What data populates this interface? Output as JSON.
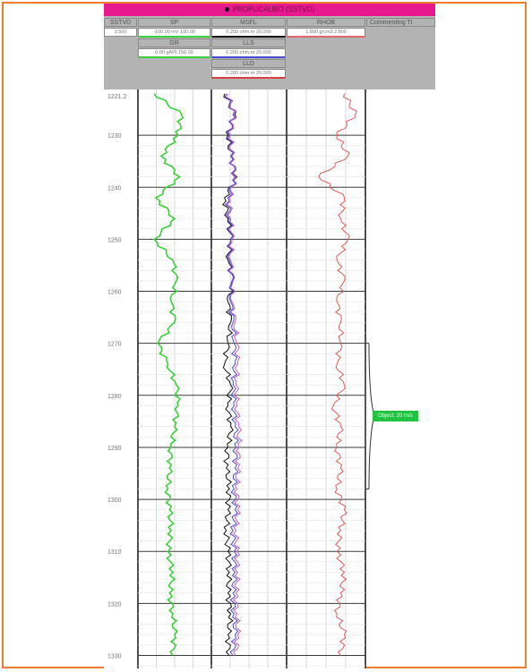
{
  "title": "PROPUCAUBO (SSTVD)",
  "header": {
    "depth_track": {
      "name": "SSTVD",
      "scale": "1:500"
    },
    "sp": {
      "name": "SP",
      "scale": "-100.00 mV 100.00"
    },
    "gr": {
      "name": "GR",
      "scale": "0.00 gAPI 150.00"
    },
    "msfl": {
      "name": "MSFL",
      "scale": "0.200 ohm.m 20.000"
    },
    "lls": {
      "name": "LLS",
      "scale": "0.200 ohm.m 20.000"
    },
    "lld": {
      "name": "LLD",
      "scale": "0.200 ohm.m 20.000"
    },
    "rhob": {
      "name": "RHOB",
      "scale": "1.800 g/cm3 2.800"
    },
    "comments": {
      "name": "Commenting Tr"
    }
  },
  "depth_ticks": [
    "1221.2",
    "1230",
    "1240",
    "1250",
    "1260",
    "1270",
    "1280",
    "1290",
    "1300",
    "1310",
    "1320",
    "1330"
  ],
  "callout": {
    "label": "Object: 20 m/s"
  },
  "chart_data": {
    "type": "line",
    "y_axis": {
      "label": "SSTVD",
      "range": [
        1221.2,
        1332.5
      ],
      "inverted": true
    },
    "bracket_depth_range": [
      1270,
      1298
    ],
    "series": [
      {
        "name": "SP",
        "units": "mV",
        "range": [
          -100,
          100
        ],
        "color": "#3ccf3c",
        "depth": [
          1222,
          1226,
          1230,
          1234,
          1238,
          1242,
          1246,
          1250,
          1254,
          1258,
          1262,
          1266,
          1270,
          1274,
          1278,
          1282,
          1286,
          1290,
          1294,
          1298,
          1302,
          1306,
          1310,
          1314,
          1318,
          1322,
          1326,
          1330
        ],
        "values": [
          -60,
          20,
          10,
          -40,
          15,
          -55,
          0,
          -60,
          -5,
          5,
          -10,
          0,
          -50,
          -20,
          5,
          10,
          0,
          -10,
          -15,
          -20,
          -15,
          -10,
          -20,
          -5,
          -15,
          -5,
          0,
          -5
        ]
      },
      {
        "name": "MSFL",
        "units": "ohm.m",
        "range": [
          0.2,
          20
        ],
        "color": "#111111",
        "depth": [
          1222,
          1226,
          1230,
          1234,
          1238,
          1242,
          1246,
          1250,
          1254,
          1258,
          1262,
          1266,
          1270,
          1274,
          1278,
          1282,
          1286,
          1290,
          1294,
          1298,
          1302,
          1306,
          1310,
          1314,
          1318,
          1322,
          1326,
          1330
        ],
        "values": [
          0.4,
          0.8,
          0.5,
          0.6,
          0.9,
          0.4,
          0.5,
          0.6,
          0.5,
          0.7,
          0.5,
          0.6,
          0.5,
          0.4,
          0.6,
          0.5,
          0.6,
          0.5,
          0.45,
          0.55,
          0.5,
          0.45,
          0.5,
          0.55,
          0.5,
          0.6,
          0.5,
          0.55
        ]
      },
      {
        "name": "LLS",
        "units": "ohm.m",
        "range": [
          0.2,
          20
        ],
        "color": "#4b4bd1",
        "depth": [
          1222,
          1226,
          1230,
          1234,
          1238,
          1242,
          1246,
          1250,
          1254,
          1258,
          1262,
          1266,
          1270,
          1274,
          1278,
          1282,
          1286,
          1290,
          1294,
          1298,
          1302,
          1306,
          1310,
          1314,
          1318,
          1322,
          1326,
          1330
        ],
        "values": [
          0.45,
          0.7,
          0.55,
          0.6,
          0.8,
          0.5,
          0.55,
          0.6,
          0.55,
          0.65,
          0.6,
          0.7,
          0.75,
          0.8,
          0.7,
          0.75,
          0.8,
          0.85,
          0.8,
          0.75,
          0.8,
          0.7,
          0.75,
          0.8,
          0.7,
          0.75,
          0.8,
          0.7
        ]
      },
      {
        "name": "LLD",
        "units": "ohm.m",
        "range": [
          0.2,
          20
        ],
        "color": "#c060c0",
        "depth": [
          1222,
          1226,
          1230,
          1234,
          1238,
          1242,
          1246,
          1250,
          1254,
          1258,
          1262,
          1266,
          1270,
          1274,
          1278,
          1282,
          1286,
          1290,
          1294,
          1298,
          1302,
          1306,
          1310,
          1314,
          1318,
          1322,
          1326,
          1330
        ],
        "values": [
          0.5,
          0.75,
          0.6,
          0.65,
          0.85,
          0.55,
          0.6,
          0.65,
          0.6,
          0.7,
          0.65,
          0.8,
          0.9,
          0.95,
          0.85,
          0.9,
          1.0,
          1.05,
          0.95,
          0.9,
          0.95,
          0.85,
          0.9,
          0.95,
          0.85,
          0.9,
          0.95,
          0.85
        ]
      },
      {
        "name": "RHOB",
        "units": "g/cm3",
        "range": [
          1.8,
          2.8
        ],
        "color": "#e05a5a",
        "depth": [
          1222,
          1226,
          1230,
          1234,
          1238,
          1242,
          1246,
          1250,
          1254,
          1258,
          1262,
          1266,
          1270,
          1274,
          1278,
          1282,
          1286,
          1290,
          1294,
          1298,
          1302,
          1306,
          1310,
          1314,
          1318,
          1322,
          1326,
          1330
        ],
        "values": [
          2.55,
          2.7,
          2.45,
          2.6,
          2.2,
          2.55,
          2.5,
          2.6,
          2.45,
          2.55,
          2.45,
          2.5,
          2.5,
          2.45,
          2.55,
          2.4,
          2.5,
          2.45,
          2.5,
          2.45,
          2.55,
          2.5,
          2.45,
          2.55,
          2.5,
          2.45,
          2.55,
          2.5
        ]
      }
    ]
  }
}
